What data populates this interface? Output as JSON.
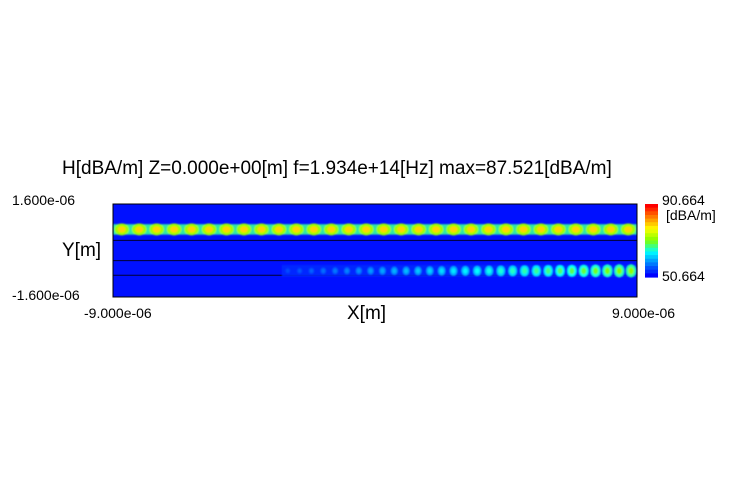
{
  "chart_data": {
    "type": "heatmap",
    "title": "H[dBA/m] Z=0.000e+00[m] f=1.934e+14[Hz] max=87.521[dBA/m]",
    "xlabel": "X[m]",
    "ylabel": "Y[m]",
    "xlim": [
      -9e-06,
      9e-06
    ],
    "ylim": [
      -1.6e-06,
      1.6e-06
    ],
    "x_tick_labels": [
      "-9.000e-06",
      "9.000e-06"
    ],
    "y_tick_labels": [
      "1.600e-06",
      "-1.600e-06"
    ],
    "colorbar": {
      "unit": "[dBA/m]",
      "max": 90.664,
      "min": 50.664,
      "max_label": "90.664",
      "min_label": "50.664",
      "colormap": [
        "#0000ff",
        "#0080ff",
        "#00ffff",
        "#80ff00",
        "#ffff00",
        "#ff8000",
        "#ff0000"
      ]
    },
    "background_color": "#0010ff",
    "features": [
      {
        "name": "upper waveguide band",
        "y_range": [
          5e-07,
          9.5e-07
        ],
        "x_range": [
          -9e-06,
          9e-06
        ],
        "spot_count": 30,
        "level_start": 0.72,
        "level_end": 0.72
      },
      {
        "name": "lower waveguide band",
        "y_range": [
          -9.5e-07,
          -4.5e-07
        ],
        "x_range": [
          -3.2e-06,
          9e-06
        ],
        "spot_count": 30,
        "level_start": 0.1,
        "level_end": 0.52
      }
    ],
    "guide_lines_y": [
      3.5e-07,
      -3.5e-07,
      -8.5e-07
    ]
  }
}
